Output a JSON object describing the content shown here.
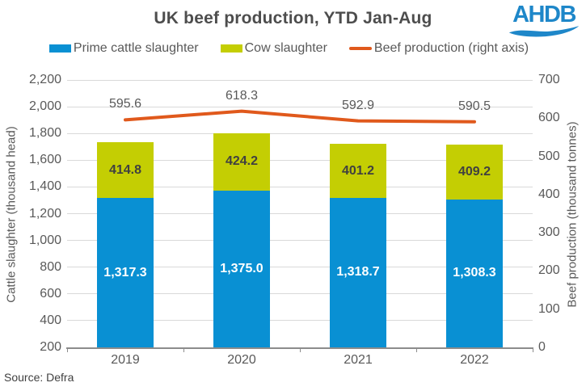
{
  "header": {
    "title": "UK beef production, YTD Jan-Aug",
    "logo_text": "AHDB"
  },
  "legend": {
    "items": [
      {
        "label": "Prime cattle slaughter",
        "swatch": "bar",
        "color": "#0990D3"
      },
      {
        "label": "Cow slaughter",
        "swatch": "bar",
        "color": "#C4CE03"
      },
      {
        "label": "Beef production (right axis)",
        "swatch": "line",
        "color": "#E0591C"
      }
    ]
  },
  "footer": {
    "source": "Source: Defra"
  },
  "colors": {
    "gridline": "#D9D9D9",
    "axis_line": "#8C8C8C",
    "logo_blue": "#1E87C9",
    "title_text": "#4D4D4D"
  },
  "chart_data": {
    "type": "bar",
    "subtype": "stacked-column-with-line",
    "title": "UK beef production, YTD Jan-Aug",
    "categories": [
      "2019",
      "2020",
      "2021",
      "2022"
    ],
    "series": [
      {
        "name": "Prime cattle slaughter",
        "type": "bar",
        "axis": "left",
        "color": "#0990D3",
        "values": [
          1317.3,
          1375.0,
          1318.7,
          1308.3
        ],
        "data_labels": [
          "1,317.3",
          "1,375.0",
          "1,318.7",
          "1,308.3"
        ],
        "label_color": "#FFFFFF"
      },
      {
        "name": "Cow slaughter",
        "type": "bar",
        "axis": "left",
        "color": "#C4CE03",
        "values": [
          414.8,
          424.2,
          401.2,
          409.2
        ],
        "data_labels": [
          "414.8",
          "424.2",
          "401.2",
          "409.2"
        ],
        "label_color": "#404040"
      },
      {
        "name": "Beef production (right axis)",
        "type": "line",
        "axis": "right",
        "color": "#E0591C",
        "values": [
          595.6,
          618.3,
          592.9,
          590.5
        ],
        "data_labels": [
          "595.6",
          "618.3",
          "592.9",
          "590.5"
        ],
        "label_color": "#595959"
      }
    ],
    "left_axis": {
      "title": "Cattle slaughter (thousand head)",
      "min": 200,
      "max": 2200,
      "step": 200,
      "tick_labels": [
        "2,200",
        "2,000",
        "1,800",
        "1,600",
        "1,400",
        "1,200",
        "1,000",
        "800",
        "600",
        "400",
        "200"
      ]
    },
    "right_axis": {
      "title": "Beef production (thousand tonnes)",
      "min": 0,
      "max": 700,
      "step": 100,
      "tick_labels": [
        "700",
        "600",
        "500",
        "400",
        "300",
        "200",
        "100",
        "0"
      ]
    },
    "grid": true,
    "legend_position": "top"
  }
}
